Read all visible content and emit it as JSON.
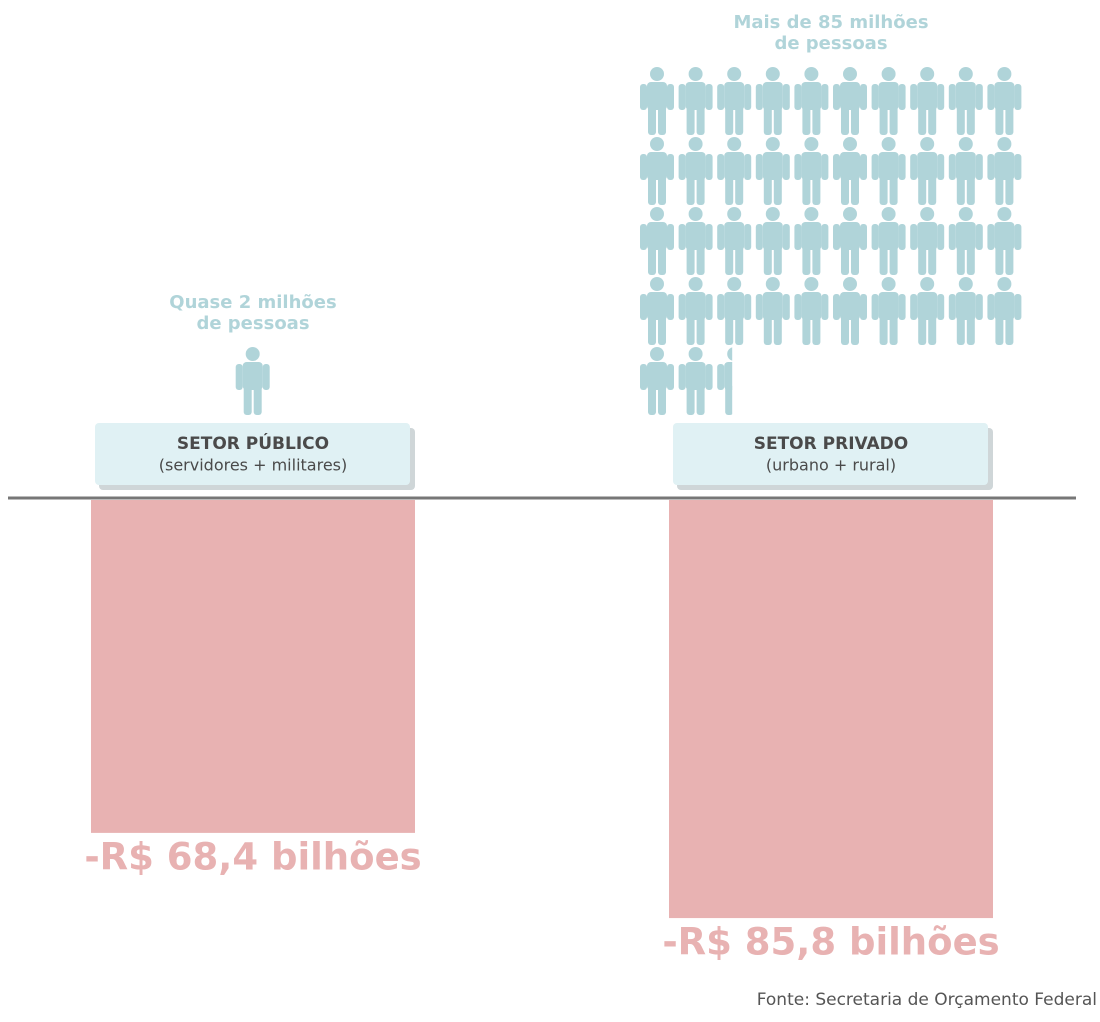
{
  "chart_data": {
    "type": "bar",
    "categories": [
      "SETOR PÚBLICO",
      "SETOR PRIVADO"
    ],
    "category_subtitles": [
      "(servidores + militares)",
      "(urbano + rural)"
    ],
    "values": [
      -68.4,
      -85.8
    ],
    "value_labels": [
      "-R$ 68,4 bilhões",
      "-R$ 85,8 bilhões"
    ],
    "color": "#e8b2b2",
    "people": [
      2,
      85
    ],
    "people_labels": [
      [
        "Quase 2 milhões",
        "de pessoas"
      ],
      [
        "Mais de 85 milhões",
        "de pessoas"
      ]
    ],
    "people_color": "#b0d4d9",
    "source": "Fonte: Secretaria de Orçamento Federal"
  }
}
